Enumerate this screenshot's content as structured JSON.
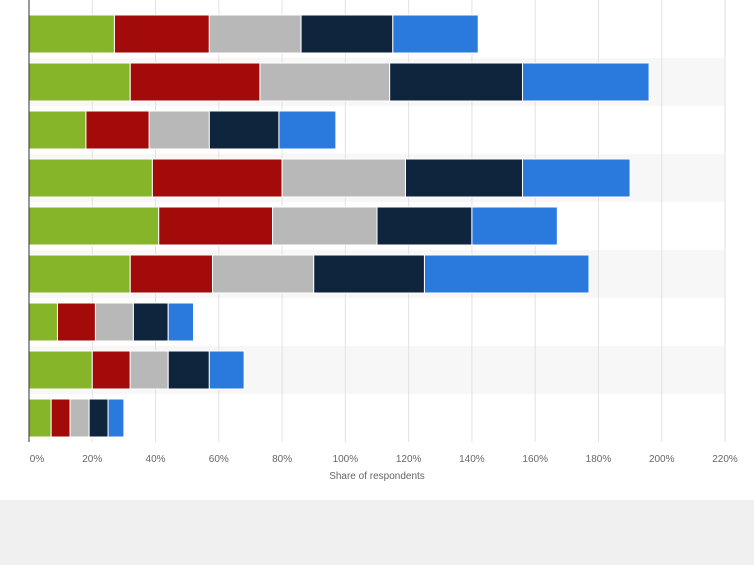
{
  "chart_data": {
    "type": "bar",
    "orientation": "horizontal",
    "stacked": true,
    "title": "",
    "xlabel": "Share of respondents",
    "ylabel": "",
    "xlim": [
      0,
      220
    ],
    "x_ticks": [
      0,
      20,
      40,
      60,
      80,
      100,
      120,
      140,
      160,
      180,
      200,
      220
    ],
    "x_tick_labels": [
      "0%",
      "20%",
      "40%",
      "60%",
      "80%",
      "100%",
      "120%",
      "140%",
      "160%",
      "180%",
      "200%",
      "220%"
    ],
    "grid": true,
    "legend": "none",
    "categories": [
      "",
      "",
      "",
      "",
      "",
      "",
      "",
      "",
      ""
    ],
    "series": [
      {
        "color": "#86b52a",
        "values": [
          27,
          32,
          18,
          39,
          41,
          32,
          9,
          20,
          7
        ]
      },
      {
        "color": "#a30a0a",
        "values": [
          30,
          41,
          20,
          41,
          36,
          26,
          12,
          12,
          6
        ]
      },
      {
        "color": "#b8b8b8",
        "values": [
          29,
          41,
          19,
          39,
          33,
          32,
          12,
          12,
          6
        ]
      },
      {
        "color": "#0f253d",
        "values": [
          29,
          42,
          22,
          37,
          30,
          35,
          11,
          13,
          6
        ]
      },
      {
        "color": "#2a79dd",
        "values": [
          27,
          40,
          18,
          34,
          27,
          52,
          8,
          11,
          5
        ]
      }
    ]
  }
}
